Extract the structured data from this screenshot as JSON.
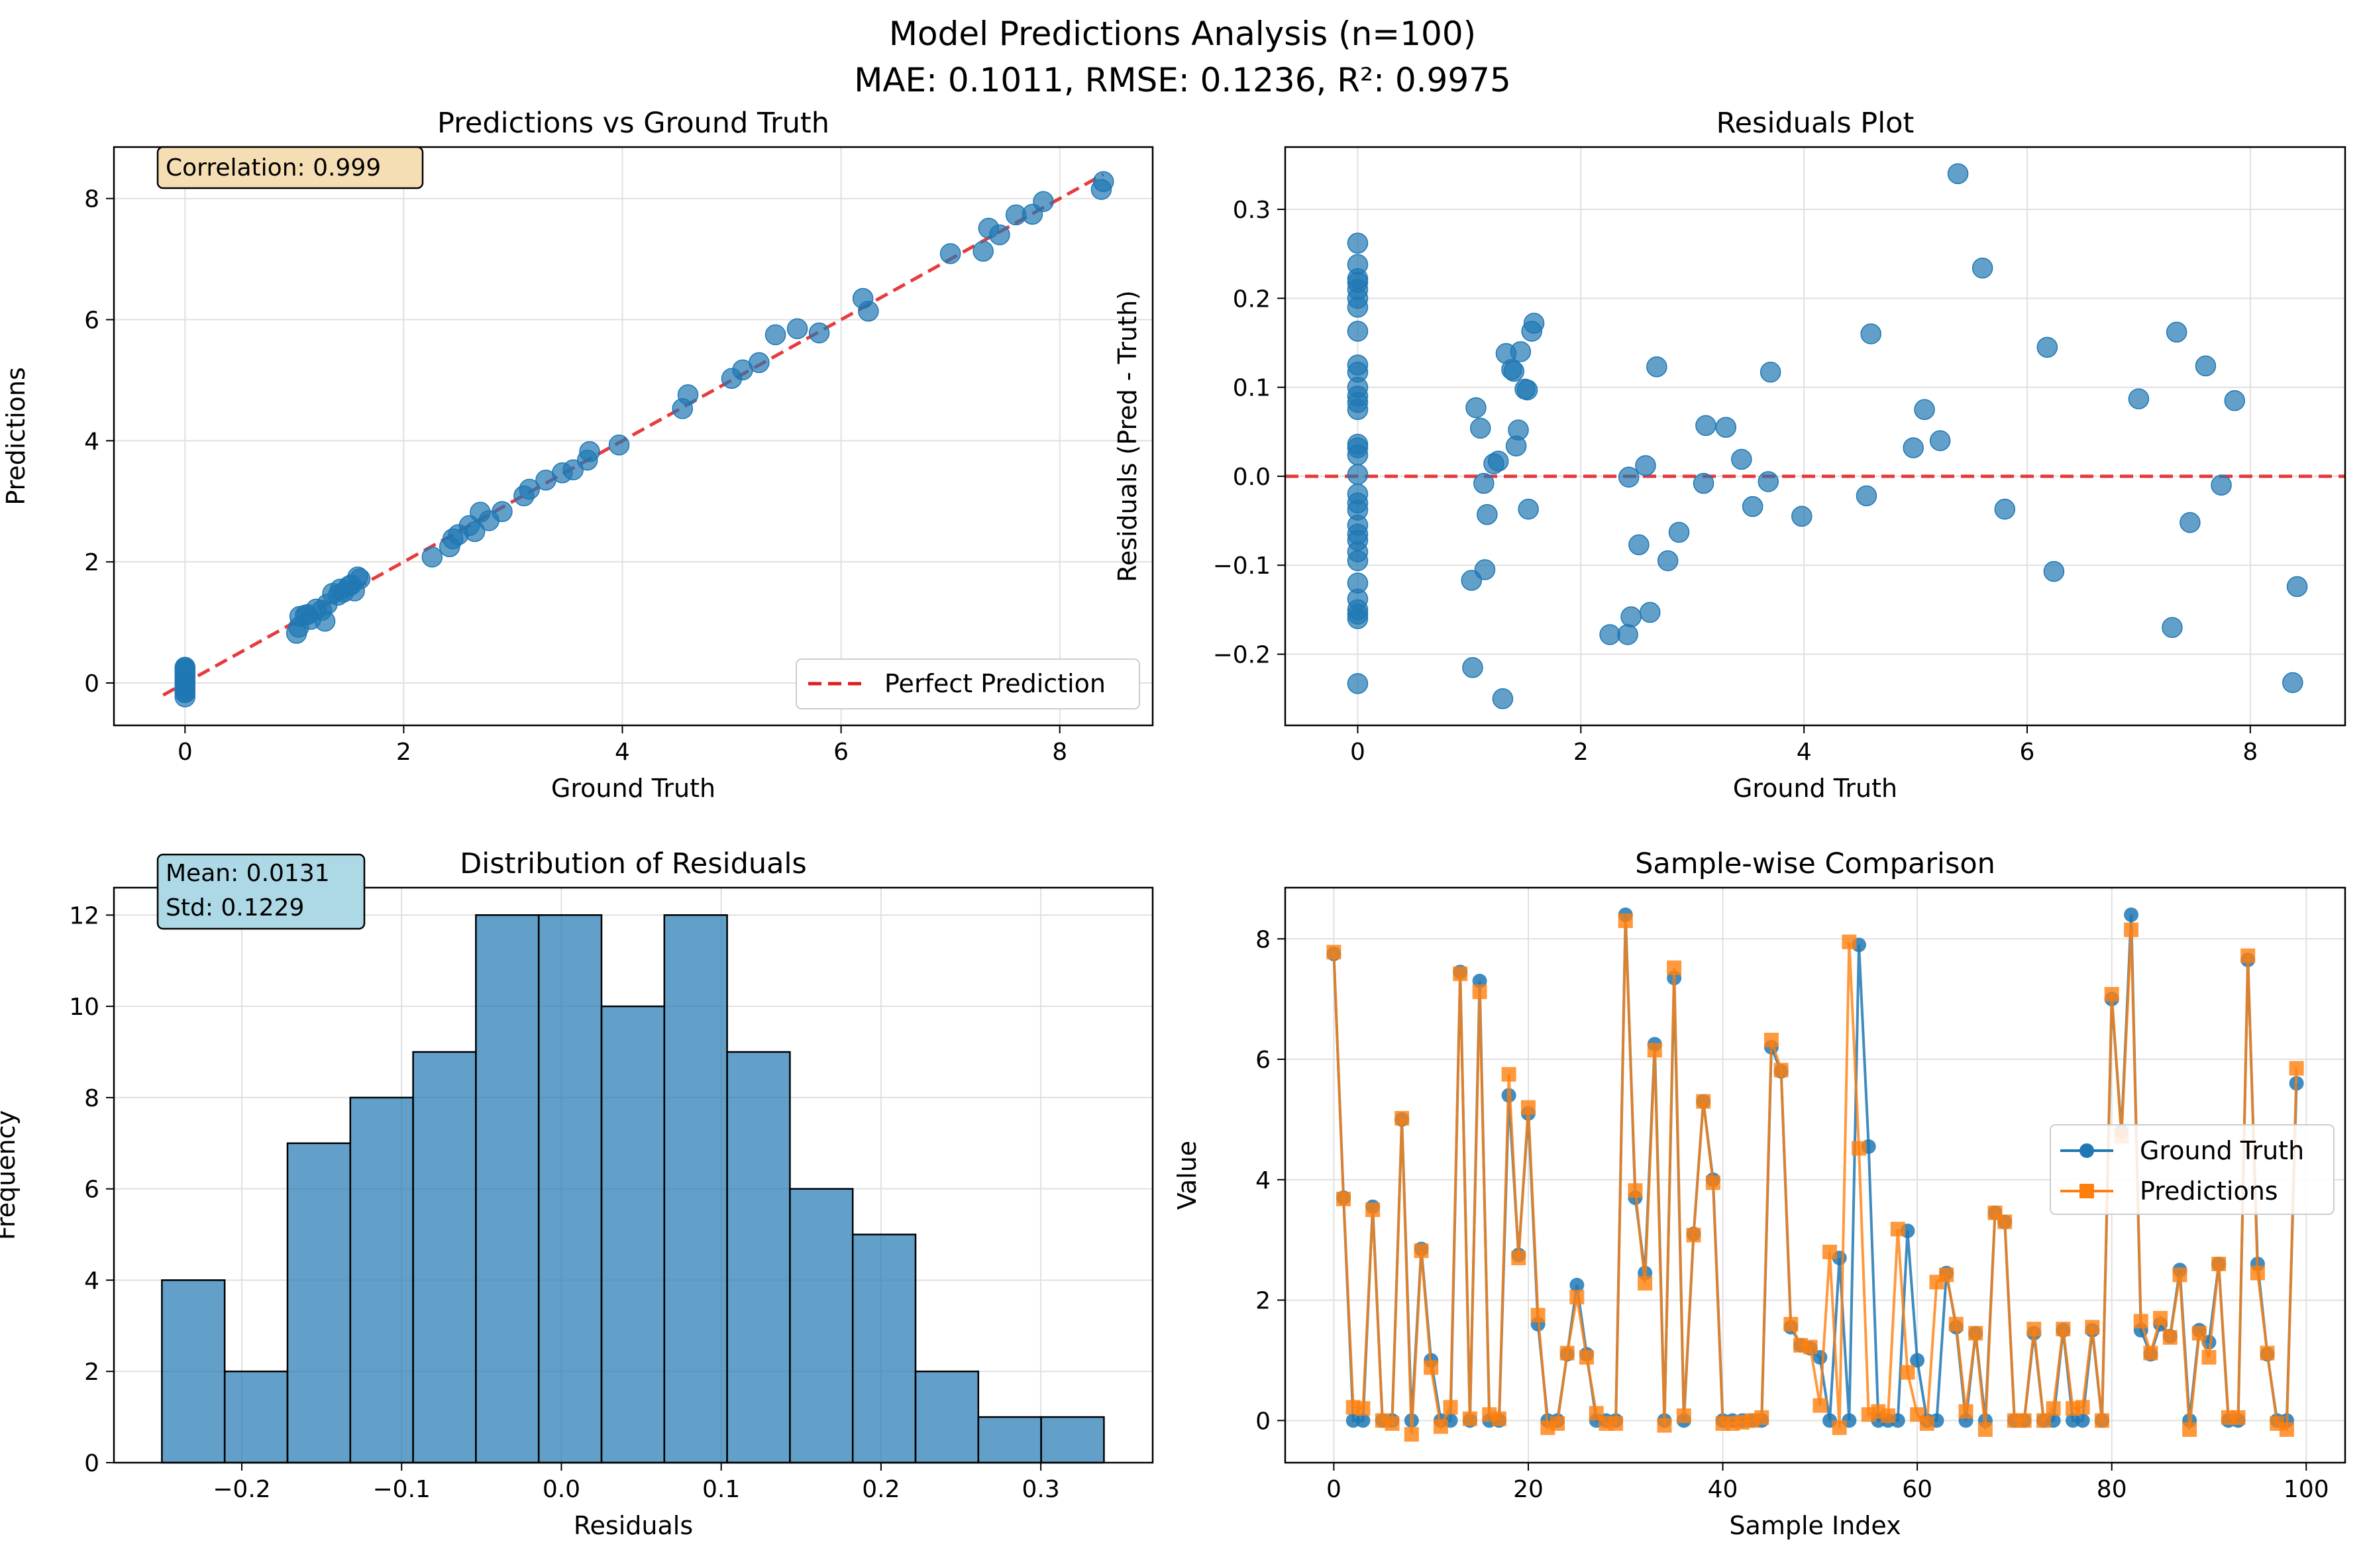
{
  "figure": {
    "title_line1": "Model Predictions Analysis (n=100)",
    "title_line2": "MAE: 0.1011, RMSE: 0.1236, R²: 0.9975"
  },
  "colors": {
    "blue": "#1f77b4",
    "orange": "#ff7f0e",
    "red_dashed": "#e31a1c",
    "corr_box": "#f5deb3",
    "stats_box": "#add8e6",
    "grid": "#e0e0e0"
  },
  "chart_data": [
    {
      "id": "pvg",
      "type": "scatter",
      "title": "Predictions vs Ground Truth",
      "xlabel": "Ground Truth",
      "ylabel": "Predictions",
      "xlim": [
        -0.65,
        8.85
      ],
      "ylim": [
        -0.7,
        8.85
      ],
      "xticks": [
        0,
        2,
        4,
        6,
        8
      ],
      "yticks": [
        0,
        2,
        4,
        6,
        8
      ],
      "annotation": "Correlation: 0.999",
      "legend": [
        "Perfect Prediction"
      ],
      "legend_loc": "lower-right",
      "reference_line": [
        [
          -0.2,
          -0.2
        ],
        [
          8.4,
          8.4
        ]
      ],
      "points": [
        [
          0,
          -0.23
        ],
        [
          0,
          -0.16
        ],
        [
          0,
          -0.15
        ],
        [
          0,
          -0.12
        ],
        [
          0,
          -0.08
        ],
        [
          0,
          -0.06
        ],
        [
          0,
          -0.03
        ],
        [
          0,
          0.0
        ],
        [
          0,
          0.03
        ],
        [
          0,
          0.08
        ],
        [
          0,
          0.1
        ],
        [
          0,
          0.12
        ],
        [
          0,
          0.16
        ],
        [
          0,
          0.19
        ],
        [
          0,
          0.21
        ],
        [
          0,
          0.22
        ],
        [
          0,
          0.24
        ],
        [
          0,
          0.26
        ],
        [
          1.02,
          0.82
        ],
        [
          1.04,
          0.92
        ],
        [
          1.05,
          1.1
        ],
        [
          1.1,
          1.12
        ],
        [
          1.12,
          1.13
        ],
        [
          1.15,
          1.05
        ],
        [
          1.2,
          1.22
        ],
        [
          1.25,
          1.2
        ],
        [
          1.28,
          1.02
        ],
        [
          1.3,
          1.3
        ],
        [
          1.35,
          1.48
        ],
        [
          1.4,
          1.45
        ],
        [
          1.42,
          1.55
        ],
        [
          1.45,
          1.5
        ],
        [
          1.5,
          1.6
        ],
        [
          1.52,
          1.62
        ],
        [
          1.55,
          1.52
        ],
        [
          1.58,
          1.75
        ],
        [
          1.6,
          1.72
        ],
        [
          2.26,
          2.08
        ],
        [
          2.42,
          2.25
        ],
        [
          2.45,
          2.38
        ],
        [
          2.5,
          2.45
        ],
        [
          2.6,
          2.6
        ],
        [
          2.65,
          2.5
        ],
        [
          2.7,
          2.82
        ],
        [
          2.78,
          2.68
        ],
        [
          2.9,
          2.83
        ],
        [
          3.1,
          3.09
        ],
        [
          3.15,
          3.2
        ],
        [
          3.3,
          3.35
        ],
        [
          3.45,
          3.47
        ],
        [
          3.55,
          3.52
        ],
        [
          3.68,
          3.68
        ],
        [
          3.7,
          3.82
        ],
        [
          3.97,
          3.93
        ],
        [
          4.55,
          4.53
        ],
        [
          4.6,
          4.76
        ],
        [
          5.0,
          5.03
        ],
        [
          5.1,
          5.17
        ],
        [
          5.25,
          5.29
        ],
        [
          5.4,
          5.75
        ],
        [
          5.6,
          5.85
        ],
        [
          5.8,
          5.78
        ],
        [
          6.2,
          6.35
        ],
        [
          6.25,
          6.14
        ],
        [
          7.0,
          7.09
        ],
        [
          7.3,
          7.13
        ],
        [
          7.35,
          7.51
        ],
        [
          7.45,
          7.4
        ],
        [
          7.6,
          7.73
        ],
        [
          7.75,
          7.74
        ],
        [
          7.85,
          7.95
        ],
        [
          8.38,
          8.15
        ],
        [
          8.4,
          8.28
        ]
      ]
    },
    {
      "id": "resid",
      "type": "scatter",
      "title": "Residuals Plot",
      "xlabel": "Ground Truth",
      "ylabel": "Residuals (Pred - Truth)",
      "xlim": [
        -0.65,
        8.85
      ],
      "ylim": [
        -0.28,
        0.37
      ],
      "xticks": [
        0,
        2,
        4,
        6,
        8
      ],
      "yticks": [
        -0.2,
        -0.1,
        0.0,
        0.1,
        0.2,
        0.3
      ],
      "ytick_labels": [
        "−0.2",
        "−0.1",
        "0.0",
        "0.1",
        "0.2",
        "0.3"
      ],
      "zero_line": 0,
      "points": [
        [
          0,
          0.262
        ],
        [
          0,
          0.238
        ],
        [
          0,
          0.222
        ],
        [
          0,
          0.218
        ],
        [
          0,
          0.21
        ],
        [
          0,
          0.2
        ],
        [
          0,
          0.19
        ],
        [
          0,
          0.163
        ],
        [
          0,
          0.125
        ],
        [
          0,
          0.117
        ],
        [
          0,
          0.1
        ],
        [
          0,
          0.09
        ],
        [
          0,
          0.083
        ],
        [
          0,
          0.075
        ],
        [
          0,
          0.036
        ],
        [
          0,
          0.032
        ],
        [
          0,
          0.024
        ],
        [
          0,
          0.002
        ],
        [
          0,
          -0.02
        ],
        [
          0,
          -0.03
        ],
        [
          0,
          -0.038
        ],
        [
          0,
          -0.055
        ],
        [
          0,
          -0.065
        ],
        [
          0,
          -0.072
        ],
        [
          0,
          -0.085
        ],
        [
          0,
          -0.095
        ],
        [
          0,
          -0.12
        ],
        [
          0,
          -0.138
        ],
        [
          0,
          -0.15
        ],
        [
          0,
          -0.155
        ],
        [
          0,
          -0.16
        ],
        [
          0,
          -0.233
        ],
        [
          1.02,
          -0.117
        ],
        [
          1.03,
          -0.215
        ],
        [
          1.06,
          0.077
        ],
        [
          1.1,
          0.054
        ],
        [
          1.13,
          -0.008
        ],
        [
          1.14,
          -0.105
        ],
        [
          1.16,
          -0.043
        ],
        [
          1.22,
          0.014
        ],
        [
          1.26,
          0.017
        ],
        [
          1.3,
          -0.25
        ],
        [
          1.33,
          0.138
        ],
        [
          1.38,
          0.12
        ],
        [
          1.4,
          0.118
        ],
        [
          1.42,
          0.034
        ],
        [
          1.44,
          0.052
        ],
        [
          1.46,
          0.14
        ],
        [
          1.5,
          0.098
        ],
        [
          1.52,
          0.097
        ],
        [
          1.53,
          -0.037
        ],
        [
          1.56,
          0.163
        ],
        [
          1.58,
          0.172
        ],
        [
          2.26,
          -0.178
        ],
        [
          2.42,
          -0.178
        ],
        [
          2.43,
          -0.001
        ],
        [
          2.45,
          -0.158
        ],
        [
          2.52,
          -0.077
        ],
        [
          2.58,
          0.012
        ],
        [
          2.62,
          -0.153
        ],
        [
          2.68,
          0.123
        ],
        [
          2.78,
          -0.095
        ],
        [
          2.88,
          -0.063
        ],
        [
          3.1,
          -0.008
        ],
        [
          3.12,
          0.057
        ],
        [
          3.3,
          0.055
        ],
        [
          3.44,
          0.019
        ],
        [
          3.54,
          -0.034
        ],
        [
          3.68,
          -0.006
        ],
        [
          3.7,
          0.117
        ],
        [
          3.98,
          -0.045
        ],
        [
          4.56,
          -0.022
        ],
        [
          4.6,
          0.16
        ],
        [
          4.98,
          0.032
        ],
        [
          5.08,
          0.075
        ],
        [
          5.22,
          0.04
        ],
        [
          5.38,
          0.34
        ],
        [
          5.6,
          0.234
        ],
        [
          5.8,
          -0.037
        ],
        [
          6.18,
          0.145
        ],
        [
          6.24,
          -0.107
        ],
        [
          7.0,
          0.087
        ],
        [
          7.3,
          -0.17
        ],
        [
          7.34,
          0.162
        ],
        [
          7.46,
          -0.052
        ],
        [
          7.6,
          0.124
        ],
        [
          7.74,
          -0.01
        ],
        [
          7.86,
          0.085
        ],
        [
          8.38,
          -0.232
        ],
        [
          8.42,
          -0.124
        ]
      ]
    },
    {
      "id": "hist",
      "type": "bar",
      "title": "Distribution of Residuals",
      "xlabel": "Residuals",
      "ylabel": "Frequency",
      "xlim": [
        -0.28,
        0.37
      ],
      "ylim": [
        0,
        12.6
      ],
      "xticks": [
        -0.2,
        -0.1,
        0.0,
        0.1,
        0.2,
        0.3
      ],
      "xtick_labels": [
        "−0.2",
        "−0.1",
        "0.0",
        "0.1",
        "0.2",
        "0.3"
      ],
      "yticks": [
        0,
        2,
        4,
        6,
        8,
        10,
        12
      ],
      "annotation_line1": "Mean: 0.0131",
      "annotation_line2": "Std: 0.1229",
      "bin_start": -0.25,
      "bin_width": 0.0393,
      "values": [
        4,
        2,
        7,
        8,
        9,
        12,
        12,
        10,
        12,
        9,
        6,
        5,
        2,
        1,
        1
      ]
    },
    {
      "id": "sample",
      "type": "line",
      "title": "Sample-wise Comparison",
      "xlabel": "Sample Index",
      "ylabel": "Value",
      "xlim": [
        -5,
        104
      ],
      "ylim": [
        -0.7,
        8.85
      ],
      "xticks": [
        0,
        20,
        40,
        60,
        80,
        100
      ],
      "yticks": [
        0,
        2,
        4,
        6,
        8
      ],
      "legend": [
        "Ground Truth",
        "Predictions"
      ],
      "legend_loc": "center-right",
      "x_start": 0,
      "ground_truth": [
        7.75,
        3.7,
        0,
        0,
        3.55,
        0,
        0,
        5.0,
        0,
        2.85,
        1.0,
        0,
        0,
        7.45,
        0,
        7.3,
        0,
        0,
        5.4,
        2.75,
        5.1,
        1.6,
        0,
        0,
        1.1,
        2.25,
        1.1,
        0,
        0,
        0,
        8.4,
        3.7,
        2.45,
        6.25,
        0,
        7.35,
        0,
        3.1,
        5.3,
        4.0,
        0,
        0,
        0,
        0,
        0,
        6.2,
        5.8,
        1.55,
        1.25,
        1.2,
        1.05,
        0,
        2.7,
        0,
        7.9,
        4.55,
        0,
        0,
        0,
        3.15,
        1.0,
        0,
        0,
        2.45,
        1.55,
        0,
        1.45,
        0,
        3.45,
        3.3,
        0,
        0,
        1.45,
        0,
        0,
        1.5,
        0,
        0,
        1.5,
        0,
        7.0,
        4.8,
        8.4,
        1.5,
        1.1,
        1.6,
        1.4,
        2.5,
        0,
        1.5,
        1.3,
        2.6,
        0,
        0,
        7.65,
        2.6,
        1.1,
        0,
        0,
        5.6
      ],
      "predictions": [
        7.78,
        3.68,
        0.22,
        0.2,
        3.5,
        0,
        -0.05,
        5.02,
        -0.23,
        2.82,
        0.88,
        -0.1,
        0.22,
        7.42,
        0.03,
        7.12,
        0.1,
        0.03,
        5.75,
        2.7,
        5.2,
        1.75,
        -0.12,
        -0.05,
        1.12,
        2.05,
        1.05,
        0.12,
        -0.05,
        -0.05,
        8.3,
        3.82,
        2.28,
        6.15,
        -0.08,
        7.52,
        0.08,
        3.08,
        5.3,
        3.95,
        -0.05,
        -0.05,
        -0.03,
        0,
        0.05,
        6.32,
        5.82,
        1.6,
        1.25,
        1.22,
        0.25,
        2.8,
        -0.12,
        7.95,
        4.52,
        0.1,
        0.15,
        0.08,
        3.18,
        0.8,
        0.1,
        -0.05,
        2.3,
        2.42,
        1.6,
        0.15,
        1.45,
        -0.15,
        3.45,
        3.3,
        0,
        0,
        1.52,
        0,
        0.2,
        1.52,
        0.2,
        0.22,
        1.55,
        0,
        7.08,
        4.72,
        8.15,
        1.65,
        1.12,
        1.7,
        1.38,
        2.42,
        -0.15,
        1.45,
        1.05,
        2.6,
        0.05,
        0.05,
        7.72,
        2.45,
        1.12,
        -0.05,
        -0.15,
        5.85
      ]
    }
  ]
}
